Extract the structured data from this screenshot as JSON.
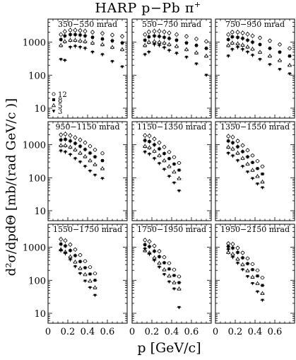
{
  "title": {
    "main": "HARP p−Pb π",
    "sup": "+"
  },
  "ylabel": "d²σ/dpdΘ [mb/(rad GeV/c )]",
  "xlabel": "p [GeV/c]",
  "legend": [
    {
      "marker": "circle-open",
      "label": "12"
    },
    {
      "marker": "square-filled",
      "label": "8"
    },
    {
      "marker": "triangle-open",
      "label": "5"
    },
    {
      "marker": "triangle-down-filled",
      "label": "3"
    }
  ],
  "chart_data": {
    "type": "scatter",
    "log_y": true,
    "xlim": [
      0,
      0.8
    ],
    "ylim": [
      5,
      5000
    ],
    "x_ticks": [
      "0",
      "0.2",
      "0.4",
      "0.6"
    ],
    "x_tick_values": [
      0,
      0.2,
      0.4,
      0.6
    ],
    "y_ticks": [
      "10",
      "100",
      "1000"
    ],
    "y_tick_values": [
      10,
      100,
      1000
    ],
    "panels": [
      {
        "label": "350−550 mrad",
        "series": [
          {
            "name": "12",
            "x": [
              0.13,
              0.17,
              0.225,
              0.275,
              0.325,
              0.375,
              0.45,
              0.55,
              0.65,
              0.75
            ],
            "y": [
              1700,
              2100,
              2300,
              2300,
              2250,
              2150,
              2000,
              1850,
              1650,
              1500
            ]
          },
          {
            "name": "8",
            "x": [
              0.13,
              0.17,
              0.225,
              0.275,
              0.325,
              0.375,
              0.45,
              0.55,
              0.65,
              0.75
            ],
            "y": [
              1200,
              1550,
              1700,
              1700,
              1650,
              1550,
              1400,
              1250,
              1100,
              950
            ]
          },
          {
            "name": "5",
            "x": [
              0.13,
              0.17,
              0.225,
              0.275,
              0.325,
              0.375,
              0.45,
              0.55,
              0.65,
              0.75
            ],
            "y": [
              800,
              1050,
              1150,
              1150,
              1100,
              1050,
              950,
              850,
              700,
              600
            ]
          },
          {
            "name": "3",
            "x": [
              0.13,
              0.17,
              0.225,
              0.275,
              0.325,
              0.375,
              0.45,
              0.55,
              0.65,
              0.75
            ],
            "y": [
              300,
              280,
              700,
              750,
              700,
              650,
              500,
              420,
              260,
              180
            ]
          }
        ]
      },
      {
        "label": "550−750 mrad",
        "series": [
          {
            "name": "12",
            "x": [
              0.13,
              0.17,
              0.225,
              0.275,
              0.325,
              0.375,
              0.45,
              0.55,
              0.65,
              0.75
            ],
            "y": [
              1700,
              2050,
              2150,
              2150,
              2050,
              1900,
              1700,
              1500,
              1250,
              1050
            ]
          },
          {
            "name": "8",
            "x": [
              0.13,
              0.17,
              0.225,
              0.275,
              0.325,
              0.375,
              0.45,
              0.55,
              0.65,
              0.75
            ],
            "y": [
              1150,
              1450,
              1550,
              1500,
              1400,
              1300,
              1150,
              950,
              800,
              650
            ]
          },
          {
            "name": "5",
            "x": [
              0.13,
              0.17,
              0.225,
              0.275,
              0.325,
              0.375,
              0.45,
              0.55,
              0.65,
              0.75
            ],
            "y": [
              800,
              1000,
              1050,
              1000,
              950,
              850,
              750,
              600,
              480,
              380
            ]
          },
          {
            "name": "3",
            "x": [
              0.13,
              0.17,
              0.225,
              0.275,
              0.325,
              0.375,
              0.45,
              0.55,
              0.65,
              0.75
            ],
            "y": [
              420,
              500,
              850,
              800,
              680,
              560,
              460,
              350,
              220,
              100
            ]
          }
        ]
      },
      {
        "label": "750−950 mrad",
        "series": [
          {
            "name": "12",
            "x": [
              0.13,
              0.17,
              0.225,
              0.275,
              0.325,
              0.375,
              0.45,
              0.55,
              0.65,
              0.75
            ],
            "y": [
              1700,
              2000,
              2000,
              1900,
              1750,
              1550,
              1350,
              1100,
              850,
              650
            ]
          },
          {
            "name": "8",
            "x": [
              0.13,
              0.17,
              0.225,
              0.275,
              0.325,
              0.375,
              0.45,
              0.55,
              0.65,
              0.75
            ],
            "y": [
              1200,
              1450,
              1400,
              1300,
              1150,
              1000,
              850,
              650,
              500,
              380
            ]
          },
          {
            "name": "5",
            "x": [
              0.13,
              0.17,
              0.225,
              0.275,
              0.325,
              0.375,
              0.45,
              0.55,
              0.65,
              0.75
            ],
            "y": [
              800,
              950,
              900,
              820,
              720,
              620,
              500,
              380,
              280,
              200
            ]
          },
          {
            "name": "3",
            "x": [
              0.13,
              0.17,
              0.225,
              0.275,
              0.325,
              0.375,
              0.45,
              0.55,
              0.65,
              0.75
            ],
            "y": [
              380,
              600,
              700,
              600,
              500,
              400,
              300,
              210,
              150,
              110
            ]
          }
        ]
      },
      {
        "label": "950−1150 mrad",
        "series": [
          {
            "name": "12",
            "x": [
              0.13,
              0.175,
              0.225,
              0.275,
              0.325,
              0.375,
              0.425,
              0.475,
              0.55
            ],
            "y": [
              2000,
              2100,
              1900,
              1650,
              1400,
              1150,
              900,
              700,
              550
            ]
          },
          {
            "name": "8",
            "x": [
              0.13,
              0.175,
              0.225,
              0.275,
              0.325,
              0.375,
              0.425,
              0.475,
              0.55
            ],
            "y": [
              1400,
              1450,
              1300,
              1100,
              900,
              720,
              560,
              430,
              330
            ]
          },
          {
            "name": "5",
            "x": [
              0.13,
              0.175,
              0.225,
              0.275,
              0.325,
              0.375,
              0.425,
              0.475,
              0.55
            ],
            "y": [
              950,
              950,
              850,
              700,
              560,
              440,
              330,
              250,
              190
            ]
          },
          {
            "name": "3",
            "x": [
              0.13,
              0.175,
              0.225,
              0.275,
              0.325,
              0.375,
              0.425,
              0.475,
              0.55
            ],
            "y": [
              650,
              600,
              500,
              380,
              300,
              220,
              160,
              120,
              95
            ]
          }
        ]
      },
      {
        "label": "1150−1350 mrad",
        "series": [
          {
            "name": "12",
            "x": [
              0.13,
              0.175,
              0.225,
              0.275,
              0.325,
              0.375,
              0.425,
              0.475
            ],
            "y": [
              1900,
              1850,
              1500,
              1150,
              850,
              600,
              420,
              280
            ]
          },
          {
            "name": "8",
            "x": [
              0.13,
              0.175,
              0.225,
              0.275,
              0.325,
              0.375,
              0.425,
              0.475
            ],
            "y": [
              1350,
              1250,
              1000,
              750,
              540,
              380,
              260,
              170
            ]
          },
          {
            "name": "5",
            "x": [
              0.13,
              0.175,
              0.225,
              0.275,
              0.325,
              0.375,
              0.425,
              0.475
            ],
            "y": [
              900,
              820,
              640,
              470,
              330,
              220,
              150,
              95
            ]
          },
          {
            "name": "3",
            "x": [
              0.13,
              0.175,
              0.225,
              0.275,
              0.325,
              0.375,
              0.425,
              0.475
            ],
            "y": [
              600,
              520,
              380,
              270,
              180,
              110,
              70,
              40
            ]
          }
        ]
      },
      {
        "label": "1350−1550 mrad",
        "series": [
          {
            "name": "12",
            "x": [
              0.13,
              0.175,
              0.225,
              0.275,
              0.325,
              0.375,
              0.425,
              0.475
            ],
            "y": [
              1800,
              1700,
              1300,
              950,
              680,
              470,
              320,
              220
            ]
          },
          {
            "name": "8",
            "x": [
              0.13,
              0.175,
              0.225,
              0.275,
              0.325,
              0.375,
              0.425,
              0.475
            ],
            "y": [
              1300,
              1150,
              870,
              620,
              430,
              290,
              190,
              130
            ]
          },
          {
            "name": "5",
            "x": [
              0.13,
              0.175,
              0.225,
              0.275,
              0.325,
              0.375,
              0.425,
              0.475
            ],
            "y": [
              850,
              750,
              560,
              390,
              260,
              170,
              110,
              75
            ]
          },
          {
            "name": "3",
            "x": [
              0.13,
              0.175,
              0.225,
              0.275,
              0.325,
              0.375,
              0.425,
              0.475
            ],
            "y": [
              550,
              460,
              330,
              220,
              150,
              95,
              65,
              50
            ]
          }
        ]
      },
      {
        "label": "1550−1750 mrad",
        "series": [
          {
            "name": "12",
            "x": [
              0.13,
              0.175,
              0.225,
              0.275,
              0.325,
              0.375,
              0.425,
              0.475
            ],
            "y": [
              1750,
              1600,
              1200,
              850,
              580,
              380,
              250,
              160
            ]
          },
          {
            "name": "8",
            "x": [
              0.13,
              0.175,
              0.225,
              0.275,
              0.325,
              0.375,
              0.425,
              0.475
            ],
            "y": [
              1250,
              1100,
              800,
              560,
              370,
              240,
              155,
              100
            ]
          },
          {
            "name": "5",
            "x": [
              0.13,
              0.175,
              0.225,
              0.275,
              0.325,
              0.375,
              0.425,
              0.475
            ],
            "y": [
              850,
              720,
              520,
              360,
              230,
              150,
              95,
              60
            ]
          },
          {
            "name": "3",
            "x": [
              0.13,
              0.175,
              0.225,
              0.275,
              0.325,
              0.375,
              0.425,
              0.475
            ],
            "y": [
              800,
              650,
              420,
              260,
              160,
              95,
              60,
              35
            ]
          }
        ]
      },
      {
        "label": "1750−1950 mrad",
        "series": [
          {
            "name": "12",
            "x": [
              0.13,
              0.175,
              0.225,
              0.275,
              0.325,
              0.375,
              0.425,
              0.475
            ],
            "y": [
              1650,
              1500,
              1100,
              760,
              500,
              330,
              210,
              130
            ]
          },
          {
            "name": "8",
            "x": [
              0.13,
              0.175,
              0.225,
              0.275,
              0.325,
              0.375,
              0.425,
              0.475
            ],
            "y": [
              1200,
              1050,
              760,
              520,
              340,
              220,
              140,
              85
            ]
          },
          {
            "name": "5",
            "x": [
              0.13,
              0.175,
              0.225,
              0.275,
              0.325,
              0.375,
              0.425,
              0.475
            ],
            "y": [
              800,
              680,
              480,
              330,
              210,
              135,
              85,
              55
            ]
          },
          {
            "name": "3",
            "x": [
              0.13,
              0.175,
              0.225,
              0.275,
              0.325,
              0.375,
              0.425,
              0.475
            ],
            "y": [
              900,
              620,
              400,
              250,
              150,
              90,
              55,
              15
            ]
          }
        ]
      },
      {
        "label": "1950−2150 mrad",
        "series": [
          {
            "name": "12",
            "x": [
              0.13,
              0.175,
              0.225,
              0.275,
              0.325,
              0.375,
              0.425,
              0.475
            ],
            "y": [
              1300,
              1250,
              950,
              680,
              460,
              310,
              200,
              120
            ]
          },
          {
            "name": "8",
            "x": [
              0.13,
              0.175,
              0.225,
              0.275,
              0.325,
              0.375,
              0.425,
              0.475
            ],
            "y": [
              1050,
              950,
              700,
              480,
              320,
              210,
              135,
              70
            ]
          },
          {
            "name": "5",
            "x": [
              0.13,
              0.175,
              0.225,
              0.275,
              0.325,
              0.375,
              0.425,
              0.475
            ],
            "y": [
              700,
              620,
              440,
              300,
              195,
              125,
              80,
              40
            ]
          },
          {
            "name": "3",
            "x": [
              0.13,
              0.175,
              0.225,
              0.275,
              0.325,
              0.375,
              0.425,
              0.475
            ],
            "y": [
              850,
              500,
              330,
              210,
              130,
              80,
              45,
              25
            ]
          }
        ]
      }
    ]
  }
}
